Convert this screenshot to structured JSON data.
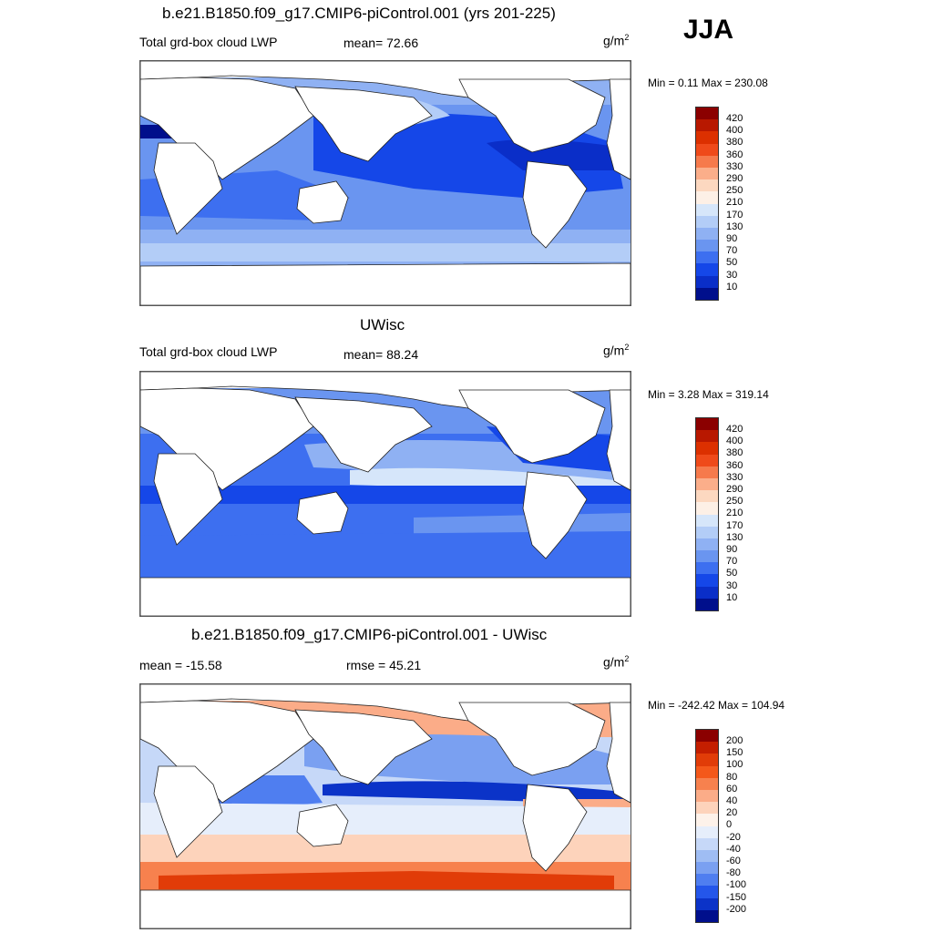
{
  "season": "JJA",
  "units": "g/m",
  "units_exp": "2",
  "panels": [
    {
      "title": "b.e21.B1850.f09_g17.CMIP6-piControl.001 (yrs 201-225)",
      "left_label": "Total grd-box cloud LWP",
      "center_label": "mean=  72.66",
      "range_label": "Min =   0.11 Max = 230.08",
      "colorbar": [
        "420",
        "400",
        "380",
        "360",
        "330",
        "290",
        "250",
        "210",
        "170",
        "130",
        "90",
        "70",
        "50",
        "30",
        "10"
      ]
    },
    {
      "title": "UWisc",
      "left_label": "Total grd-box cloud LWP",
      "center_label": "mean=  88.24",
      "range_label": "Min =   3.28 Max = 319.14",
      "colorbar": [
        "420",
        "400",
        "380",
        "360",
        "330",
        "290",
        "250",
        "210",
        "170",
        "130",
        "90",
        "70",
        "50",
        "30",
        "10"
      ]
    },
    {
      "title": "b.e21.B1850.f09_g17.CMIP6-piControl.001 - UWisc",
      "left_label": "mean = -15.58",
      "center_label": "rmse =  45.21",
      "range_label": "Min = -242.42 Max = 104.94",
      "colorbar": [
        "200",
        "150",
        "100",
        "80",
        "60",
        "40",
        "20",
        "0",
        "-20",
        "-40",
        "-60",
        "-80",
        "-100",
        "-150",
        "-200"
      ]
    }
  ],
  "colors": {
    "seq": [
      "#8b0000",
      "#b81800",
      "#dc3000",
      "#ef4a1a",
      "#f67a4c",
      "#fbae8a",
      "#fcd8c0",
      "#fdf0e6",
      "#d6e6fa",
      "#b3cdf7",
      "#8fb1f3",
      "#6a95f0",
      "#3d6ff0",
      "#1547e8",
      "#0a2ec8",
      "#000f8c"
    ],
    "div": [
      "#8b0000",
      "#c41e00",
      "#e13c08",
      "#f4581a",
      "#f7814e",
      "#fbac88",
      "#fdd3bb",
      "#fdf2ea",
      "#e6eefb",
      "#c6d8f8",
      "#9fbdf3",
      "#7aa0f1",
      "#4f7ef0",
      "#2456ea",
      "#0b33c8",
      "#000f8c"
    ]
  }
}
